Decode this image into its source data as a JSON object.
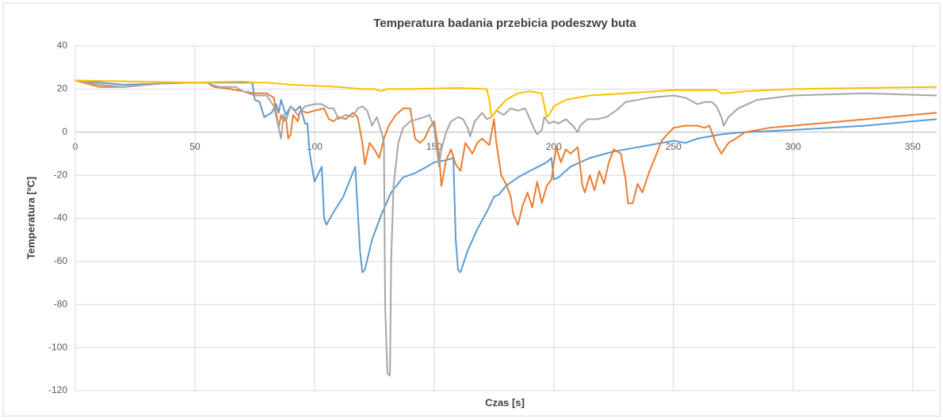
{
  "chart_data": {
    "type": "line",
    "title": "Temperatura badania przebicia podeszwy buta",
    "x_label": "Czas [s]",
    "y_label": "Temperatura [ºC]",
    "xlim": [
      0,
      360
    ],
    "xticks": [
      0,
      50,
      100,
      150,
      200,
      250,
      300,
      350
    ],
    "ylim": [
      -120,
      40
    ],
    "yticks": [
      -120,
      -100,
      -80,
      -60,
      -40,
      -20,
      0,
      20,
      40
    ],
    "grid": true,
    "series": [
      {
        "color": "#5b9bd5",
        "x": [
          0,
          10,
          20,
          50,
          70,
          74,
          75,
          77,
          79,
          82,
          84,
          85,
          86,
          88,
          90,
          92,
          94,
          96,
          97,
          98,
          100,
          103,
          104,
          105,
          108,
          112,
          117,
          119,
          120,
          121,
          124,
          128,
          132,
          137,
          142,
          147,
          150,
          155,
          158,
          159,
          160,
          161,
          164,
          168,
          172,
          175,
          177,
          180,
          185,
          190,
          197,
          199,
          200,
          202,
          207,
          215,
          225,
          240,
          250,
          255,
          260,
          270,
          280,
          300,
          330,
          360
        ],
        "values": [
          24,
          23,
          22,
          23,
          23,
          23,
          15,
          14,
          7,
          9,
          13,
          9,
          15,
          8,
          12,
          10,
          12,
          4,
          4,
          -10,
          -23,
          -16,
          -40,
          -43,
          -37,
          -30,
          -16,
          -55,
          -65,
          -64,
          -50,
          -38,
          -28,
          -21,
          -19,
          -16,
          -14,
          -13,
          -12,
          -50,
          -64,
          -65,
          -55,
          -45,
          -37,
          -30,
          -29,
          -25,
          -21,
          -18,
          -14,
          -12,
          -22,
          -21,
          -16,
          -12,
          -9,
          -6,
          -4,
          -5,
          -3,
          -1,
          0,
          1,
          3,
          6
        ]
      },
      {
        "color": "#ed7d31",
        "x": [
          0,
          10,
          20,
          40,
          55,
          58,
          65,
          70,
          75,
          80,
          83,
          85,
          86,
          87,
          88,
          89,
          90,
          91,
          93,
          94,
          97,
          100,
          104,
          106,
          108,
          110,
          113,
          116,
          118,
          120,
          121,
          123,
          125,
          127,
          129,
          131,
          134,
          137,
          140,
          142,
          144,
          146,
          148,
          150,
          152,
          153,
          155,
          157,
          159,
          161,
          163,
          166,
          168,
          170,
          173,
          175,
          176,
          178,
          180,
          182,
          183,
          185,
          187,
          189,
          191,
          193,
          195,
          197,
          199,
          201,
          203,
          205,
          207,
          210,
          212,
          213,
          215,
          217,
          219,
          221,
          223,
          225,
          228,
          230,
          231,
          233,
          235,
          237,
          240,
          243,
          245,
          250,
          255,
          260,
          263,
          265,
          268,
          270,
          273,
          276,
          280,
          290,
          300,
          320,
          340,
          360
        ],
        "values": [
          24,
          21,
          21,
          23,
          23,
          21,
          20,
          19,
          18,
          18,
          16,
          2,
          8,
          5,
          7,
          -3,
          -1,
          8,
          5,
          10,
          9,
          10,
          11,
          6,
          5,
          7,
          6,
          9,
          7,
          -5,
          -15,
          -5,
          -8,
          -12,
          -3,
          3,
          8,
          11,
          11,
          -3,
          -5,
          -3,
          2,
          5,
          -10,
          -25,
          -13,
          -8,
          -15,
          -18,
          -5,
          -10,
          -5,
          -3,
          -6,
          6,
          -5,
          -20,
          -24,
          -30,
          -38,
          -43,
          -34,
          -28,
          -35,
          -23,
          -33,
          -25,
          -22,
          -7,
          -14,
          -8,
          -10,
          -7,
          -25,
          -28,
          -20,
          -27,
          -18,
          -24,
          -14,
          -8,
          -10,
          -22,
          -33,
          -33,
          -24,
          -28,
          -18,
          -10,
          -4,
          2,
          3,
          3,
          2,
          3,
          -6,
          -10,
          -5,
          -3,
          0,
          2,
          3,
          5,
          7,
          9
        ]
      },
      {
        "color": "#a5a5a5",
        "x": [
          0,
          10,
          20,
          40,
          55,
          57,
          60,
          67,
          70,
          75,
          80,
          83,
          85,
          86,
          87,
          88,
          90,
          93,
          96,
          100,
          103,
          106,
          108,
          110,
          113,
          116,
          118,
          120,
          122,
          124,
          126,
          128,
          129,
          129.5,
          130,
          130.5,
          131.5,
          132,
          133,
          135,
          137,
          140,
          143,
          146,
          148,
          150,
          152,
          153,
          155,
          157,
          160,
          162,
          164,
          165,
          167,
          170,
          172,
          174,
          176,
          179,
          182,
          185,
          188,
          190,
          192,
          193,
          195,
          196,
          198,
          200,
          202,
          205,
          208,
          210,
          211,
          214,
          218,
          222,
          226,
          230,
          240,
          250,
          255,
          260,
          263,
          266,
          268,
          270,
          271,
          273,
          277,
          285,
          300,
          330,
          360
        ],
        "values": [
          24,
          22,
          21,
          23,
          23,
          22,
          21,
          21,
          19,
          17,
          17,
          12,
          2,
          -3,
          8,
          5,
          12,
          8,
          12,
          13,
          13,
          11,
          11,
          6,
          8,
          7,
          11,
          12,
          10,
          3,
          7,
          0,
          -5,
          -80,
          -98,
          -112,
          -113,
          -60,
          -25,
          -5,
          2,
          5,
          6,
          7,
          8,
          2,
          -16,
          -8,
          0,
          5,
          7,
          6,
          2,
          -2,
          5,
          9,
          6,
          7,
          10,
          8,
          11,
          10,
          11,
          6,
          1,
          -1,
          1,
          7,
          4,
          5,
          4,
          6,
          3,
          0,
          3,
          6,
          6,
          7,
          10,
          14,
          16,
          17,
          16,
          13,
          14,
          14,
          12,
          7,
          3,
          7,
          11,
          15,
          17,
          18,
          17
        ]
      },
      {
        "color": "#ffc000",
        "x": [
          0,
          50,
          70,
          75,
          80,
          90,
          100,
          110,
          120,
          125,
          128,
          130,
          140,
          160,
          172,
          173,
          174,
          176,
          180,
          185,
          190,
          195,
          197,
          198,
          200,
          205,
          215,
          230,
          250,
          268,
          270,
          272,
          280,
          300,
          330,
          360
        ],
        "values": [
          24,
          23,
          23.5,
          23,
          23,
          22,
          21.5,
          21,
          20,
          20,
          19,
          20,
          20,
          20.5,
          20,
          15,
          7,
          10,
          15,
          18,
          19,
          18,
          7,
          8,
          12,
          15,
          17,
          18,
          19.5,
          19.5,
          18,
          18,
          19,
          20,
          20.5,
          21
        ]
      }
    ]
  }
}
